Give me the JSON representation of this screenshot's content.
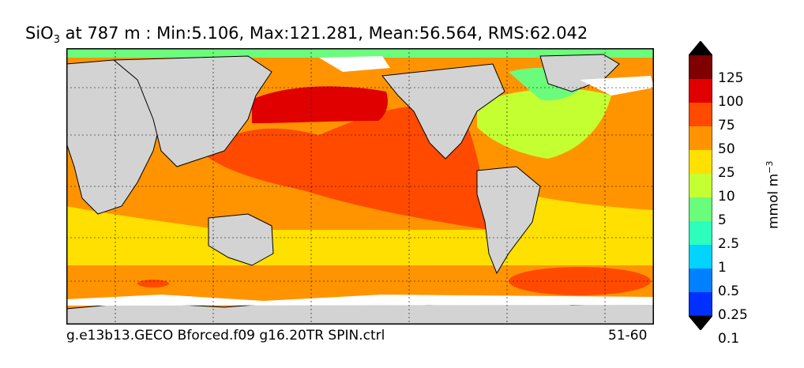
{
  "title": {
    "variable": "SiO",
    "subscript": "3",
    "rest": " at 787 m : Min:5.106, Max:121.281, Mean:56.564, RMS:62.042"
  },
  "footer": {
    "run_name": "g.e13b13.GECO Bforced.f09 g16.20TR SPIN.ctrl",
    "years": "51-60"
  },
  "colorbar": {
    "units_base": "mmol m",
    "units_exp": "−3",
    "tick_labels": [
      "125",
      "100",
      "75",
      "50",
      "25",
      "10",
      "5",
      "2.5",
      "1",
      "0.5",
      "0.25",
      "0.1"
    ],
    "colors": [
      "#7f0000",
      "#e00000",
      "#ff4a00",
      "#ff9400",
      "#ffe000",
      "#c4ff32",
      "#6cfc7c",
      "#2cffbc",
      "#00d4ff",
      "#0080ff",
      "#0030ff",
      "#0000e0",
      "#00007f"
    ]
  },
  "map_colors": {
    "land": "#d3d3d3",
    "ice": "#ffffff",
    "coast": "#000000",
    "grid": "#000000"
  }
}
